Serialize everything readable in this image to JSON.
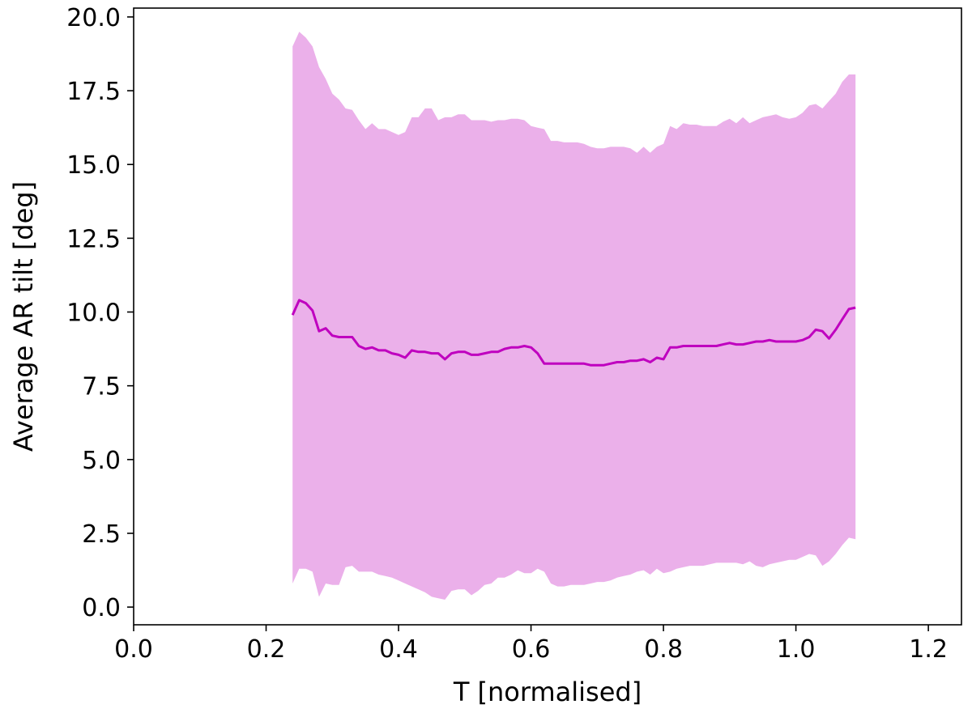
{
  "chart_data": {
    "type": "area",
    "title": "",
    "xlabel": "T [normalised]",
    "ylabel": "Average AR tilt [deg]",
    "xlim": [
      0.0,
      1.25
    ],
    "ylim": [
      -0.6,
      20.3
    ],
    "xticks": [
      0.0,
      0.2,
      0.4,
      0.6,
      0.8,
      1.0,
      1.2
    ],
    "xtick_labels": [
      "0.0",
      "0.2",
      "0.4",
      "0.6",
      "0.8",
      "1.0",
      "1.2"
    ],
    "yticks": [
      0.0,
      2.5,
      5.0,
      7.5,
      10.0,
      12.5,
      15.0,
      17.5,
      20.0
    ],
    "ytick_labels": [
      "0.0",
      "2.5",
      "5.0",
      "7.5",
      "10.0",
      "12.5",
      "15.0",
      "17.5",
      "20.0"
    ],
    "grid": false,
    "colors": {
      "line": "#bf00bf",
      "band": "#ebb0ea",
      "axes": "#000000"
    },
    "series": [
      {
        "kind": "line",
        "x": [
          0.24,
          0.25,
          0.26,
          0.27,
          0.28,
          0.29,
          0.3,
          0.31,
          0.32,
          0.33,
          0.34,
          0.35,
          0.36,
          0.37,
          0.38,
          0.39,
          0.4,
          0.41,
          0.42,
          0.43,
          0.44,
          0.45,
          0.46,
          0.47,
          0.48,
          0.49,
          0.5,
          0.51,
          0.52,
          0.53,
          0.54,
          0.55,
          0.56,
          0.57,
          0.58,
          0.59,
          0.6,
          0.61,
          0.62,
          0.63,
          0.64,
          0.65,
          0.66,
          0.67,
          0.68,
          0.69,
          0.7,
          0.71,
          0.72,
          0.73,
          0.74,
          0.75,
          0.76,
          0.77,
          0.78,
          0.79,
          0.8,
          0.81,
          0.82,
          0.83,
          0.84,
          0.85,
          0.86,
          0.87,
          0.88,
          0.89,
          0.9,
          0.91,
          0.92,
          0.93,
          0.94,
          0.95,
          0.96,
          0.97,
          0.98,
          0.99,
          1.0,
          1.01,
          1.02,
          1.03,
          1.04,
          1.05,
          1.06,
          1.07,
          1.08,
          1.09
        ],
        "y": [
          9.9,
          10.4,
          10.3,
          10.05,
          9.35,
          9.45,
          9.2,
          9.15,
          9.15,
          9.15,
          8.85,
          8.75,
          8.8,
          8.7,
          8.7,
          8.6,
          8.55,
          8.45,
          8.7,
          8.65,
          8.65,
          8.6,
          8.6,
          8.4,
          8.6,
          8.65,
          8.65,
          8.55,
          8.55,
          8.6,
          8.65,
          8.65,
          8.75,
          8.8,
          8.8,
          8.85,
          8.8,
          8.6,
          8.25,
          8.25,
          8.25,
          8.25,
          8.25,
          8.25,
          8.25,
          8.2,
          8.2,
          8.2,
          8.25,
          8.3,
          8.3,
          8.35,
          8.35,
          8.4,
          8.3,
          8.45,
          8.4,
          8.8,
          8.8,
          8.85,
          8.85,
          8.85,
          8.85,
          8.85,
          8.85,
          8.9,
          8.95,
          8.9,
          8.9,
          8.95,
          9.0,
          9.0,
          9.05,
          9.0,
          9.0,
          9.0,
          9.0,
          9.05,
          9.15,
          9.4,
          9.35,
          9.1,
          9.4,
          9.75,
          10.1,
          10.15
        ]
      },
      {
        "kind": "band",
        "x": [
          0.24,
          0.25,
          0.26,
          0.27,
          0.28,
          0.29,
          0.3,
          0.31,
          0.32,
          0.33,
          0.34,
          0.35,
          0.36,
          0.37,
          0.38,
          0.39,
          0.4,
          0.41,
          0.42,
          0.43,
          0.44,
          0.45,
          0.46,
          0.47,
          0.48,
          0.49,
          0.5,
          0.51,
          0.52,
          0.53,
          0.54,
          0.55,
          0.56,
          0.57,
          0.58,
          0.59,
          0.6,
          0.61,
          0.62,
          0.63,
          0.64,
          0.65,
          0.66,
          0.67,
          0.68,
          0.69,
          0.7,
          0.71,
          0.72,
          0.73,
          0.74,
          0.75,
          0.76,
          0.77,
          0.78,
          0.79,
          0.8,
          0.81,
          0.82,
          0.83,
          0.84,
          0.85,
          0.86,
          0.87,
          0.88,
          0.89,
          0.9,
          0.91,
          0.92,
          0.93,
          0.94,
          0.95,
          0.96,
          0.97,
          0.98,
          0.99,
          1.0,
          1.01,
          1.02,
          1.03,
          1.04,
          1.05,
          1.06,
          1.07,
          1.08,
          1.09
        ],
        "upper": [
          19.0,
          19.5,
          19.3,
          19.0,
          18.3,
          17.9,
          17.4,
          17.2,
          16.9,
          16.85,
          16.5,
          16.2,
          16.4,
          16.2,
          16.2,
          16.1,
          16.0,
          16.1,
          16.6,
          16.6,
          16.9,
          16.9,
          16.5,
          16.6,
          16.6,
          16.7,
          16.7,
          16.5,
          16.5,
          16.5,
          16.45,
          16.5,
          16.5,
          16.55,
          16.55,
          16.5,
          16.3,
          16.25,
          16.2,
          15.8,
          15.8,
          15.75,
          15.75,
          15.75,
          15.7,
          15.6,
          15.55,
          15.55,
          15.6,
          15.6,
          15.6,
          15.55,
          15.4,
          15.6,
          15.4,
          15.6,
          15.7,
          16.3,
          16.2,
          16.4,
          16.35,
          16.35,
          16.3,
          16.3,
          16.3,
          16.45,
          16.55,
          16.4,
          16.6,
          16.4,
          16.5,
          16.6,
          16.65,
          16.7,
          16.6,
          16.55,
          16.6,
          16.75,
          17.0,
          17.05,
          16.9,
          17.15,
          17.4,
          17.8,
          18.05,
          18.05
        ],
        "lower": [
          0.8,
          1.3,
          1.3,
          1.2,
          0.35,
          0.8,
          0.75,
          0.75,
          1.35,
          1.4,
          1.2,
          1.2,
          1.2,
          1.1,
          1.05,
          1.0,
          0.9,
          0.8,
          0.7,
          0.6,
          0.5,
          0.35,
          0.3,
          0.25,
          0.55,
          0.6,
          0.6,
          0.4,
          0.55,
          0.75,
          0.8,
          1.0,
          1.0,
          1.1,
          1.25,
          1.15,
          1.15,
          1.3,
          1.2,
          0.8,
          0.7,
          0.7,
          0.75,
          0.75,
          0.75,
          0.8,
          0.85,
          0.85,
          0.9,
          1.0,
          1.05,
          1.1,
          1.2,
          1.25,
          1.1,
          1.3,
          1.15,
          1.2,
          1.3,
          1.35,
          1.4,
          1.4,
          1.4,
          1.45,
          1.5,
          1.5,
          1.5,
          1.5,
          1.45,
          1.55,
          1.4,
          1.35,
          1.45,
          1.5,
          1.55,
          1.6,
          1.6,
          1.7,
          1.8,
          1.75,
          1.4,
          1.55,
          1.8,
          2.1,
          2.35,
          2.3
        ]
      }
    ]
  }
}
